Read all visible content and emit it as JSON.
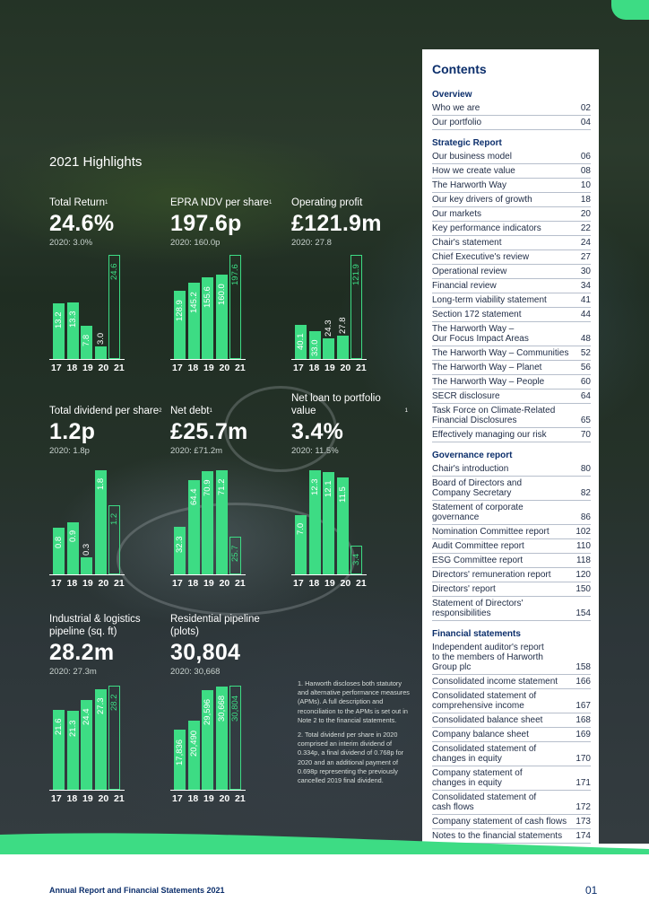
{
  "highlights_title": "2021 Highlights",
  "metrics": [
    {
      "id": "total_return",
      "label": "Total Return",
      "sup": "1",
      "value": "24.6%",
      "prev": "2020: 3.0%",
      "bars": [
        {
          "year": "17",
          "value": 13.2,
          "label": "13.2"
        },
        {
          "year": "18",
          "value": 13.3,
          "label": "13.3"
        },
        {
          "year": "19",
          "value": 7.8,
          "label": "7.8"
        },
        {
          "year": "20",
          "value": 3.0,
          "label": "3.0"
        },
        {
          "year": "21",
          "value": 24.6,
          "label": "24.6"
        }
      ]
    },
    {
      "id": "epra_ndv",
      "label": "EPRA NDV per share",
      "sup": "1",
      "value": "197.6p",
      "prev": "2020: 160.0p",
      "bars": [
        {
          "year": "17",
          "value": 128.9,
          "label": "128.9"
        },
        {
          "year": "18",
          "value": 145.2,
          "label": "145.2"
        },
        {
          "year": "19",
          "value": 155.6,
          "label": "155.6"
        },
        {
          "year": "20",
          "value": 160.0,
          "label": "160.0"
        },
        {
          "year": "21",
          "value": 197.6,
          "label": "197.6"
        }
      ]
    },
    {
      "id": "operating_profit",
      "label": "Operating profit",
      "sup": "",
      "value": "£121.9m",
      "prev": "2020: 27.8",
      "bars": [
        {
          "year": "17",
          "value": 40.1,
          "label": "40.1"
        },
        {
          "year": "18",
          "value": 33.0,
          "label": "33.0"
        },
        {
          "year": "19",
          "value": 24.3,
          "label": "24.3"
        },
        {
          "year": "20",
          "value": 27.8,
          "label": "27.8"
        },
        {
          "year": "21",
          "value": 121.9,
          "label": "121.9"
        }
      ]
    },
    {
      "id": "total_dividend",
      "label": "Total dividend per share",
      "sup": "2",
      "value": "1.2p",
      "prev": "2020: 1.8p",
      "bars": [
        {
          "year": "17",
          "value": 0.8,
          "label": "0.8"
        },
        {
          "year": "18",
          "value": 0.9,
          "label": "0.9"
        },
        {
          "year": "19",
          "value": 0.3,
          "label": "0.3"
        },
        {
          "year": "20",
          "value": 1.8,
          "label": "1.8"
        },
        {
          "year": "21",
          "value": 1.2,
          "label": "1.2"
        }
      ]
    },
    {
      "id": "net_debt",
      "label": "Net debt",
      "sup": "1",
      "value": "£25.7m",
      "prev": "2020: £71.2m",
      "bars": [
        {
          "year": "17",
          "value": 32.3,
          "label": "32.3"
        },
        {
          "year": "18",
          "value": 64.4,
          "label": "64.4"
        },
        {
          "year": "19",
          "value": 70.9,
          "label": "70.9"
        },
        {
          "year": "20",
          "value": 71.2,
          "label": "71.2"
        },
        {
          "year": "21",
          "value": 25.7,
          "label": "25.7"
        }
      ]
    },
    {
      "id": "net_loan",
      "label": "Net loan to portfolio value",
      "sup": "1",
      "value": "3.4%",
      "prev": "2020: 11.5%",
      "bars": [
        {
          "year": "17",
          "value": 7.0,
          "label": "7.0"
        },
        {
          "year": "18",
          "value": 12.3,
          "label": "12.3"
        },
        {
          "year": "19",
          "value": 12.1,
          "label": "12.1"
        },
        {
          "year": "20",
          "value": 11.5,
          "label": "11.5"
        },
        {
          "year": "21",
          "value": 3.4,
          "label": "3.4"
        }
      ]
    },
    {
      "id": "industrial",
      "label": "Industrial & logistics pipeline (sq. ft)",
      "sup": "",
      "value": "28.2m",
      "prev": "2020: 27.3m",
      "bars": [
        {
          "year": "17",
          "value": 21.6,
          "label": "21.6"
        },
        {
          "year": "18",
          "value": 21.3,
          "label": "21.3"
        },
        {
          "year": "19",
          "value": 24.4,
          "label": "24.4"
        },
        {
          "year": "20",
          "value": 27.3,
          "label": "27.3"
        },
        {
          "year": "21",
          "value": 28.2,
          "label": "28.2"
        }
      ]
    },
    {
      "id": "residential",
      "label": "Residential pipeline (plots)",
      "sup": "",
      "value": "30,804",
      "prev": "2020: 30,668",
      "bars": [
        {
          "year": "17",
          "value": 17836,
          "label": "17,836"
        },
        {
          "year": "18",
          "value": 20490,
          "label": "20,490"
        },
        {
          "year": "19",
          "value": 29596,
          "label": "29,596"
        },
        {
          "year": "20",
          "value": 30668,
          "label": "30,668"
        },
        {
          "year": "21",
          "value": 30804,
          "label": "30,804"
        }
      ]
    }
  ],
  "years_text": "17  18  19  20  21",
  "notes": [
    "1. Harworth discloses both statutory and alternative performance measures (APMs). A full description and reconciliation to the APMs is set out in Note 2 to the financial statements.",
    "2. Total dividend per share in 2020 comprised an interim dividend of 0.334p, a final dividend of 0.768p for 2020 and an additional payment of 0.698p representing the previously cancelled 2019 final dividend."
  ],
  "contents": {
    "title": "Contents",
    "sections": [
      {
        "heading": "Overview",
        "items": [
          [
            "Who we are",
            "02"
          ],
          [
            "Our portfolio",
            "04"
          ]
        ]
      },
      {
        "heading": "Strategic Report",
        "items": [
          [
            "Our business model",
            "06"
          ],
          [
            "How we create value",
            "08"
          ],
          [
            "The Harworth Way",
            "10"
          ],
          [
            "Our key drivers of growth",
            "18"
          ],
          [
            "Our markets",
            "20"
          ],
          [
            "Key performance indicators",
            "22"
          ],
          [
            "Chair's statement",
            "24"
          ],
          [
            "Chief Executive's review",
            "27"
          ],
          [
            "Operational review",
            "30"
          ],
          [
            "Financial review",
            "34"
          ],
          [
            "Long-term viability statement",
            "41"
          ],
          [
            "Section 172 statement",
            "44"
          ],
          [
            "The Harworth Way –\nOur Focus Impact Areas",
            "48"
          ],
          [
            "The Harworth Way – Communities",
            "52"
          ],
          [
            "The Harworth Way – Planet",
            "56"
          ],
          [
            "The Harworth Way – People",
            "60"
          ],
          [
            "SECR disclosure",
            "64"
          ],
          [
            "Task Force on Climate-Related\nFinancial Disclosures",
            "65"
          ],
          [
            "Effectively managing our risk",
            "70"
          ]
        ]
      },
      {
        "heading": "Governance report",
        "items": [
          [
            "Chair's introduction",
            "80"
          ],
          [
            "Board of Directors and\nCompany Secretary",
            "82"
          ],
          [
            "Statement of corporate\ngovernance",
            "86"
          ],
          [
            "Nomination Committee report",
            "102"
          ],
          [
            "Audit Committee report",
            "110"
          ],
          [
            "ESG Committee report",
            "118"
          ],
          [
            "Directors' remuneration report",
            "120"
          ],
          [
            "Directors' report",
            "150"
          ],
          [
            "Statement of Directors'\nresponsibilities",
            "154"
          ]
        ]
      },
      {
        "heading": "Financial statements",
        "items": [
          [
            "Independent auditor's report\nto the members of Harworth\nGroup plc",
            "158"
          ],
          [
            "Consolidated income statement",
            "166"
          ],
          [
            "Consolidated statement of\ncomprehensive income",
            "167"
          ],
          [
            "Consolidated balance sheet",
            "168"
          ],
          [
            "Company balance sheet",
            "169"
          ],
          [
            "Consolidated statement of\nchanges in equity",
            "170"
          ],
          [
            "Company statement of\nchanges in equity",
            "171"
          ],
          [
            "Consolidated statement of\ncash flows",
            "172"
          ],
          [
            "Company statement of cash flows",
            "173"
          ],
          [
            "Notes to the financial statements",
            "174"
          ]
        ]
      }
    ]
  },
  "footer": {
    "left": "Annual Report and Financial Statements 2021",
    "page": "01"
  },
  "colors": {
    "accent": "#3ddc84",
    "navy": "#0b2e6b"
  }
}
